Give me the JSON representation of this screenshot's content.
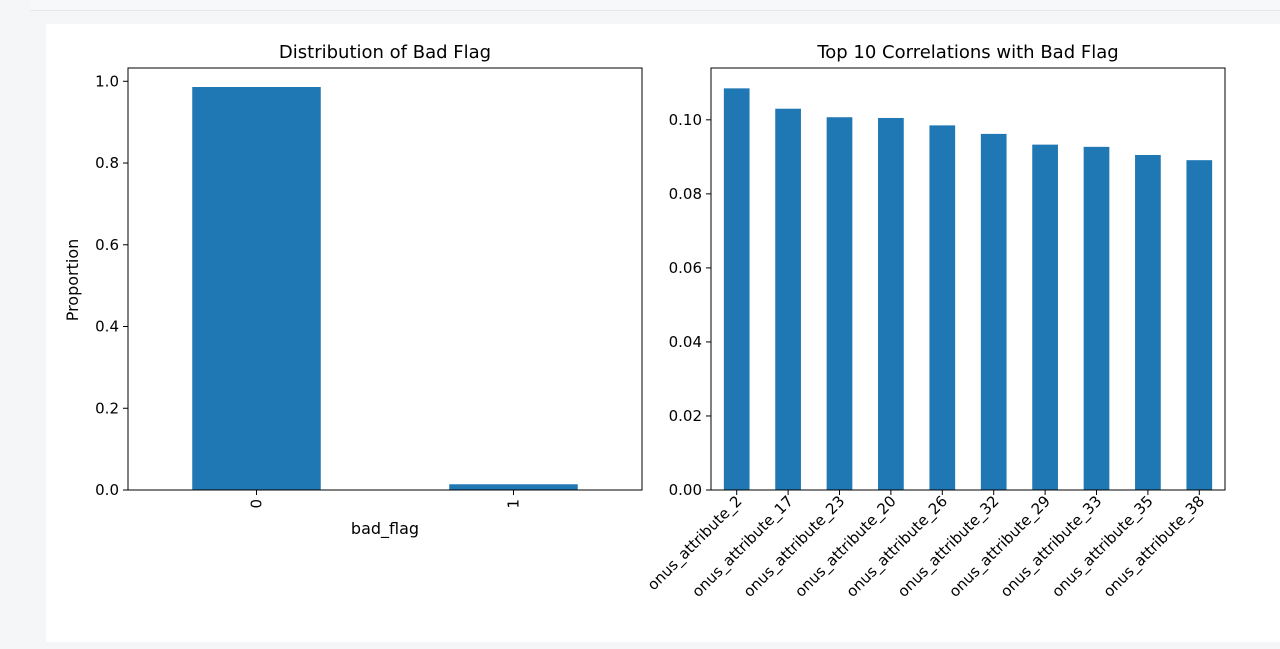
{
  "colors": {
    "bar": "#1f77b4",
    "axis": "#000000",
    "background": "#ffffff"
  },
  "chart_data": [
    {
      "type": "bar",
      "title": "Distribution of Bad Flag",
      "xlabel": "bad_flag",
      "ylabel": "Proportion",
      "categories": [
        "0",
        "1"
      ],
      "values": [
        0.986,
        0.014
      ],
      "ylim": [
        0,
        1.0325
      ],
      "yticks": [
        "0.0",
        "0.2",
        "0.4",
        "0.6",
        "0.8",
        "1.0"
      ],
      "xtick_rotation": 90,
      "grid": false,
      "legend": "none"
    },
    {
      "type": "bar",
      "title": "Top 10 Correlations with Bad Flag",
      "xlabel": "",
      "ylabel": "",
      "categories": [
        "onus_attribute_2",
        "onus_attribute_17",
        "onus_attribute_23",
        "onus_attribute_20",
        "onus_attribute_26",
        "onus_attribute_32",
        "onus_attribute_29",
        "onus_attribute_33",
        "onus_attribute_35",
        "onus_attribute_38"
      ],
      "values": [
        0.1085,
        0.103,
        0.1007,
        0.1005,
        0.0985,
        0.0962,
        0.0933,
        0.0927,
        0.0905,
        0.0891
      ],
      "ylim": [
        0,
        0.114
      ],
      "yticks": [
        "0.00",
        "0.02",
        "0.04",
        "0.06",
        "0.08",
        "0.10"
      ],
      "xtick_rotation": 45,
      "grid": false,
      "legend": "none"
    }
  ]
}
